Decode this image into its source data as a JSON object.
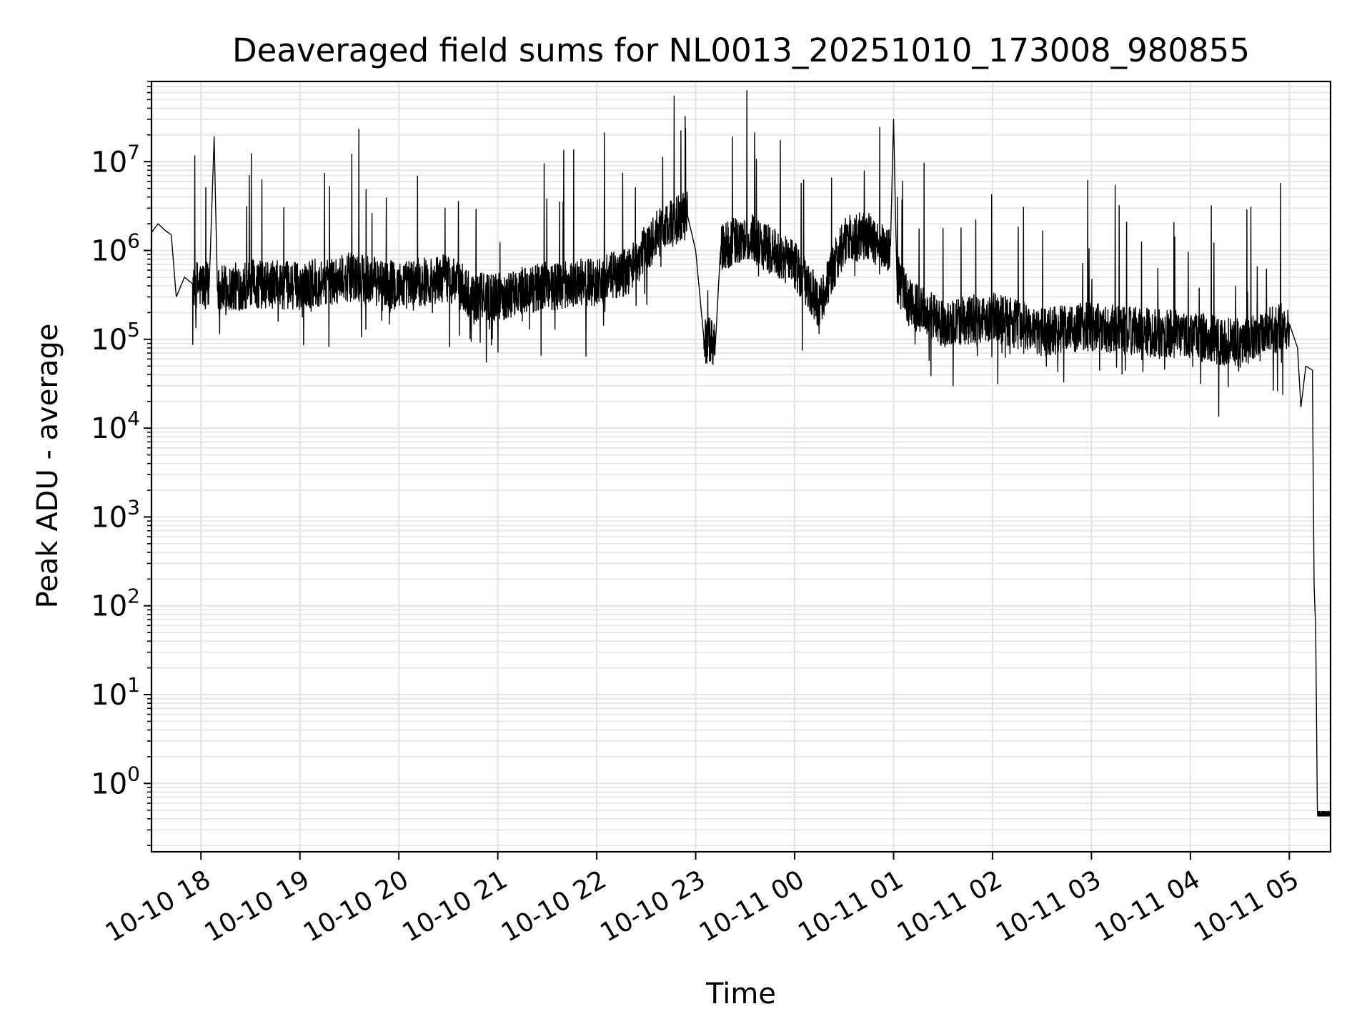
{
  "chart_data": {
    "type": "line",
    "title": "Deaveraged field sums for NL0013_20251010_173008_980855",
    "xlabel": "Time",
    "ylabel": "Peak ADU - average",
    "yscale": "log",
    "grid": true,
    "line_color": "#000000",
    "grid_color": "#e3e3e3",
    "xlim": [
      "2025-10-10 17:30",
      "2025-10-11 05:25"
    ],
    "ylim": [
      0.17,
      80000000
    ],
    "x_ticks": [
      {
        "value": "2025-10-10 18:00",
        "label": "10-10 18"
      },
      {
        "value": "2025-10-10 19:00",
        "label": "10-10 19"
      },
      {
        "value": "2025-10-10 20:00",
        "label": "10-10 20"
      },
      {
        "value": "2025-10-10 21:00",
        "label": "10-10 21"
      },
      {
        "value": "2025-10-10 22:00",
        "label": "10-10 22"
      },
      {
        "value": "2025-10-10 23:00",
        "label": "10-10 23"
      },
      {
        "value": "2025-10-11 00:00",
        "label": "10-11 00"
      },
      {
        "value": "2025-10-11 01:00",
        "label": "10-11 01"
      },
      {
        "value": "2025-10-11 02:00",
        "label": "10-11 02"
      },
      {
        "value": "2025-10-11 03:00",
        "label": "10-11 03"
      },
      {
        "value": "2025-10-11 04:00",
        "label": "10-11 04"
      },
      {
        "value": "2025-10-11 05:00",
        "label": "10-11 05"
      }
    ],
    "y_ticks": [
      {
        "value": 1,
        "base": "10",
        "exp": "0"
      },
      {
        "value": 10,
        "base": "10",
        "exp": "1"
      },
      {
        "value": 100,
        "base": "10",
        "exp": "2"
      },
      {
        "value": 1000,
        "base": "10",
        "exp": "3"
      },
      {
        "value": 10000,
        "base": "10",
        "exp": "4"
      },
      {
        "value": 100000,
        "base": "10",
        "exp": "5"
      },
      {
        "value": 1000000,
        "base": "10",
        "exp": "6"
      },
      {
        "value": 10000000,
        "base": "10",
        "exp": "7"
      }
    ],
    "series": [
      {
        "points": [
          [
            "2025-10-10 17:30",
            1600000
          ],
          [
            "2025-10-10 17:34",
            2000000
          ],
          [
            "2025-10-10 17:38",
            1700000
          ],
          [
            "2025-10-10 17:42",
            1500000
          ],
          [
            "2025-10-10 17:45",
            300000
          ],
          [
            "2025-10-10 17:50",
            500000
          ],
          [
            "2025-10-10 17:55",
            420000
          ],
          [
            "2025-10-10 18:05",
            400000
          ],
          [
            "2025-10-10 18:08",
            19000000
          ],
          [
            "2025-10-10 18:10",
            350000
          ],
          [
            "2025-10-10 18:30",
            420000
          ],
          [
            "2025-10-10 19:00",
            400000
          ],
          [
            "2025-10-10 19:30",
            500000
          ],
          [
            "2025-10-10 20:00",
            400000
          ],
          [
            "2025-10-10 20:30",
            500000
          ],
          [
            "2025-10-10 20:45",
            300000
          ],
          [
            "2025-10-10 21:00",
            300000
          ],
          [
            "2025-10-10 21:30",
            400000
          ],
          [
            "2025-10-10 22:00",
            450000
          ],
          [
            "2025-10-10 22:20",
            600000
          ],
          [
            "2025-10-10 22:40",
            1800000
          ],
          [
            "2025-10-10 22:55",
            2500000
          ],
          [
            "2025-10-10 23:00",
            1000000
          ],
          [
            "2025-10-10 23:05",
            100000
          ],
          [
            "2025-10-10 23:12",
            90000
          ],
          [
            "2025-10-10 23:15",
            1000000
          ],
          [
            "2025-10-10 23:30",
            1500000
          ],
          [
            "2025-10-11 00:00",
            700000
          ],
          [
            "2025-10-11 00:15",
            250000
          ],
          [
            "2025-10-11 00:30",
            1300000
          ],
          [
            "2025-10-11 00:45",
            1500000
          ],
          [
            "2025-10-11 00:58",
            900000
          ],
          [
            "2025-10-11 01:00",
            30000000
          ],
          [
            "2025-10-11 01:02",
            500000
          ],
          [
            "2025-10-11 01:10",
            250000
          ],
          [
            "2025-10-11 01:30",
            150000
          ],
          [
            "2025-10-11 02:00",
            180000
          ],
          [
            "2025-10-11 02:30",
            120000
          ],
          [
            "2025-10-11 03:00",
            140000
          ],
          [
            "2025-10-11 03:30",
            120000
          ],
          [
            "2025-10-11 04:00",
            110000
          ],
          [
            "2025-10-11 04:30",
            90000
          ],
          [
            "2025-10-11 05:00",
            150000
          ],
          [
            "2025-10-11 05:05",
            80000
          ],
          [
            "2025-10-11 05:07",
            17000
          ],
          [
            "2025-10-11 05:10",
            50000
          ],
          [
            "2025-10-11 05:14",
            45000
          ],
          [
            "2025-10-11 05:15",
            170
          ],
          [
            "2025-10-11 05:16",
            55
          ],
          [
            "2025-10-11 05:17",
            0.45
          ],
          [
            "2025-10-11 05:25",
            0.45
          ]
        ]
      }
    ]
  }
}
